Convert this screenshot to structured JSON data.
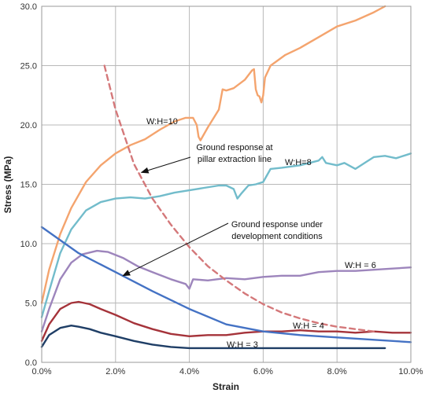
{
  "chart_data": {
    "type": "line",
    "xlabel": "Strain",
    "ylabel": "Stress (MPa)",
    "xlim": [
      0,
      10
    ],
    "ylim": [
      0,
      30
    ],
    "grid": true,
    "x_ticks": [
      {
        "value": 0,
        "label": "0.0%"
      },
      {
        "value": 2,
        "label": "2.0%"
      },
      {
        "value": 4,
        "label": "4.0%"
      },
      {
        "value": 6,
        "label": "6.0%"
      },
      {
        "value": 8,
        "label": "8.0%"
      },
      {
        "value": 10,
        "label": "10.0%"
      }
    ],
    "y_ticks": [
      {
        "value": 0,
        "label": "0.0"
      },
      {
        "value": 5,
        "label": "5.0"
      },
      {
        "value": 10,
        "label": "10.0"
      },
      {
        "value": 15,
        "label": "15.0"
      },
      {
        "value": 20,
        "label": "20.0"
      },
      {
        "value": 25,
        "label": "25.0"
      },
      {
        "value": 30,
        "label": "30.0"
      }
    ],
    "series": [
      {
        "name": "W:H=10",
        "color": "#f4a46e",
        "style": "solid",
        "x": [
          0,
          0.2,
          0.5,
          0.8,
          1.2,
          1.6,
          2.0,
          2.4,
          2.8,
          3.2,
          3.6,
          3.9,
          4.1,
          4.2,
          4.25,
          4.3,
          4.5,
          4.8,
          4.9,
          5.0,
          5.2,
          5.5,
          5.7,
          5.75,
          5.8,
          5.85,
          5.9,
          5.95,
          6.0,
          6.05,
          6.2,
          6.6,
          7.0,
          7.5,
          8.0,
          8.5,
          9.0,
          9.3
        ],
        "y": [
          5.0,
          7.8,
          10.8,
          13.0,
          15.2,
          16.6,
          17.6,
          18.3,
          18.8,
          19.6,
          20.3,
          20.6,
          20.6,
          20.0,
          19.0,
          18.7,
          19.8,
          21.3,
          23.0,
          22.9,
          23.1,
          23.8,
          24.6,
          24.7,
          23.0,
          22.5,
          22.4,
          21.9,
          22.5,
          24.0,
          25.0,
          25.9,
          26.5,
          27.4,
          28.3,
          28.8,
          29.5,
          30.0
        ]
      },
      {
        "name": "W:H=8",
        "color": "#72bccb",
        "style": "solid",
        "x": [
          0,
          0.2,
          0.5,
          0.8,
          1.2,
          1.6,
          2.0,
          2.4,
          2.8,
          3.2,
          3.6,
          4.0,
          4.4,
          4.8,
          5.0,
          5.2,
          5.3,
          5.4,
          5.6,
          5.8,
          6.0,
          6.2,
          6.5,
          7.0,
          7.5,
          7.6,
          7.7,
          8.0,
          8.2,
          8.5,
          8.8,
          9.0,
          9.3,
          9.6,
          9.9,
          10.0
        ],
        "y": [
          3.8,
          6.0,
          9.2,
          11.2,
          12.8,
          13.5,
          13.8,
          13.9,
          13.8,
          14.0,
          14.3,
          14.5,
          14.7,
          14.9,
          14.9,
          14.6,
          13.8,
          14.2,
          14.9,
          15.0,
          15.2,
          16.3,
          16.4,
          16.6,
          17.0,
          17.3,
          16.8,
          16.6,
          16.8,
          16.3,
          16.9,
          17.3,
          17.4,
          17.2,
          17.5,
          17.6
        ]
      },
      {
        "name": "W:H = 6",
        "color": "#9d85bc",
        "style": "solid",
        "x": [
          0,
          0.2,
          0.5,
          0.8,
          1.1,
          1.5,
          1.8,
          2.2,
          2.6,
          3.0,
          3.5,
          3.9,
          4.0,
          4.1,
          4.5,
          5.0,
          5.5,
          6.0,
          6.5,
          7.0,
          7.5,
          8.0,
          8.5,
          9.0,
          9.5,
          10.0
        ],
        "y": [
          2.6,
          4.5,
          7.0,
          8.4,
          9.1,
          9.4,
          9.3,
          8.8,
          8.1,
          7.6,
          7.0,
          6.6,
          6.2,
          7.0,
          6.9,
          7.1,
          7.0,
          7.2,
          7.3,
          7.3,
          7.6,
          7.7,
          7.7,
          7.8,
          7.9,
          8.0
        ]
      },
      {
        "name": "W:H = 4",
        "color": "#a5333a",
        "style": "solid",
        "x": [
          0,
          0.2,
          0.5,
          0.8,
          1.0,
          1.3,
          1.6,
          2.0,
          2.5,
          3.0,
          3.5,
          4.0,
          4.5,
          5.0,
          5.5,
          6.0,
          6.5,
          7.0,
          7.5,
          8.0,
          8.5,
          9.0,
          9.5,
          10.0
        ],
        "y": [
          1.8,
          3.2,
          4.5,
          5.0,
          5.1,
          4.9,
          4.5,
          4.0,
          3.3,
          2.8,
          2.4,
          2.2,
          2.3,
          2.3,
          2.5,
          2.6,
          2.6,
          2.7,
          2.6,
          2.6,
          2.5,
          2.6,
          2.5,
          2.5
        ]
      },
      {
        "name": "W:H = 3",
        "color": "#1f3e66",
        "style": "solid",
        "x": [
          0,
          0.2,
          0.5,
          0.8,
          1.0,
          1.3,
          1.6,
          2.0,
          2.5,
          3.0,
          3.5,
          4.0,
          4.5,
          5.0,
          5.5,
          6.0,
          6.5,
          7.0,
          7.5,
          8.0,
          8.5,
          9.0,
          9.3
        ],
        "y": [
          1.3,
          2.3,
          2.9,
          3.1,
          3.0,
          2.8,
          2.5,
          2.2,
          1.8,
          1.5,
          1.3,
          1.2,
          1.2,
          1.2,
          1.2,
          1.2,
          1.2,
          1.2,
          1.2,
          1.2,
          1.2,
          1.2,
          1.2
        ]
      },
      {
        "name": "Ground response under development conditions",
        "color": "#4472c4",
        "style": "solid",
        "x": [
          0,
          1.0,
          2.0,
          3.0,
          4.0,
          5.0,
          6.0,
          7.0,
          8.0,
          9.0,
          10.0
        ],
        "y": [
          11.4,
          9.2,
          7.6,
          6.0,
          4.5,
          3.2,
          2.6,
          2.3,
          2.1,
          1.9,
          1.7
        ]
      },
      {
        "name": "Ground response at pillar extraction line",
        "color": "#d4787a",
        "style": "dashed",
        "x": [
          1.7,
          2.0,
          2.5,
          3.0,
          3.5,
          4.0,
          4.5,
          5.0,
          5.5,
          6.0,
          6.5,
          7.0,
          7.5,
          8.0,
          8.5,
          9.0
        ],
        "y": [
          25.0,
          21.3,
          16.7,
          13.8,
          11.6,
          9.7,
          8.1,
          6.9,
          5.8,
          4.9,
          4.2,
          3.7,
          3.3,
          3.0,
          2.8,
          2.6
        ]
      }
    ],
    "annotations": [
      {
        "text": "W:H=10",
        "kind": "label"
      },
      {
        "text": "W:H=8",
        "kind": "label"
      },
      {
        "text": "W:H = 6",
        "kind": "label"
      },
      {
        "text": "W:H = 4",
        "kind": "label"
      },
      {
        "text": "W:H = 3",
        "kind": "label"
      },
      {
        "lines": [
          "Ground response at",
          "pillar extraction line"
        ],
        "kind": "callout",
        "target": [
          2.7,
          16.0
        ]
      },
      {
        "lines": [
          "Ground response under",
          "development conditions"
        ],
        "kind": "callout",
        "target": [
          2.2,
          7.3
        ]
      }
    ]
  }
}
